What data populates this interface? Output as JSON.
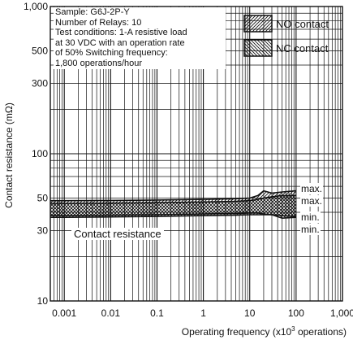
{
  "chart_data": {
    "type": "area",
    "title": "",
    "xlabel": "Operating frequency (x10³ operations)",
    "xlabel_parts": {
      "before": "Operating frequency (x10",
      "sup": "3",
      "after": " operations)"
    },
    "ylabel": "Contact resistance (mΩ)",
    "x_scale": "log",
    "y_scale": "log",
    "xlim": [
      0.0005,
      1000
    ],
    "ylim": [
      10,
      1000
    ],
    "grid": true,
    "x_ticks": [
      0.001,
      0.01,
      0.1,
      1,
      10,
      100,
      1000
    ],
    "x_tick_labels": [
      "0.001",
      "0.01",
      "0.1",
      "1",
      "10",
      "100",
      "1,000"
    ],
    "y_ticks": [
      10,
      30,
      50,
      100,
      300,
      500,
      1000
    ],
    "y_tick_labels": [
      "10",
      "30",
      "50",
      "100",
      "300",
      "500",
      "1,000"
    ],
    "conditions": [
      "Sample: G6J-2P-Y",
      "Number of Relays: 10",
      "Test conditions: 1-A resistive load",
      "at 30 VDC with an operation rate",
      "of 50% Switching frequency:",
      "1,800 operations/hour"
    ],
    "legend": [
      {
        "name": "NO contact",
        "pattern": "forward-hatch"
      },
      {
        "name": "NC contact",
        "pattern": "back-hatch"
      }
    ],
    "legend_position": "top-right",
    "annotation": "Contact resistance",
    "series": [
      {
        "name": "NO contact",
        "x": [
          0.0005,
          0.001,
          0.01,
          0.1,
          1,
          5,
          10,
          15,
          20,
          30,
          50,
          100
        ],
        "max": [
          48,
          48,
          48.2,
          48.5,
          49,
          49.5,
          50,
          52,
          56,
          54,
          55,
          56
        ],
        "min": [
          37,
          37,
          37.2,
          37.5,
          38,
          38.2,
          38.5,
          38.5,
          38.5,
          38.5,
          38,
          37.5
        ]
      },
      {
        "name": "NC contact",
        "x": [
          0.0005,
          0.001,
          0.01,
          0.1,
          1,
          5,
          10,
          15,
          20,
          30,
          50,
          100
        ],
        "max": [
          46,
          46,
          46.2,
          46.5,
          47,
          47.5,
          48,
          49,
          50,
          51,
          52,
          52
        ],
        "min": [
          38,
          38,
          38.2,
          38.5,
          39,
          39.2,
          39.5,
          39.5,
          39,
          38.5,
          36.5,
          37
        ]
      }
    ],
    "end_labels": [
      "max.",
      "max.",
      "min.",
      "min."
    ]
  }
}
